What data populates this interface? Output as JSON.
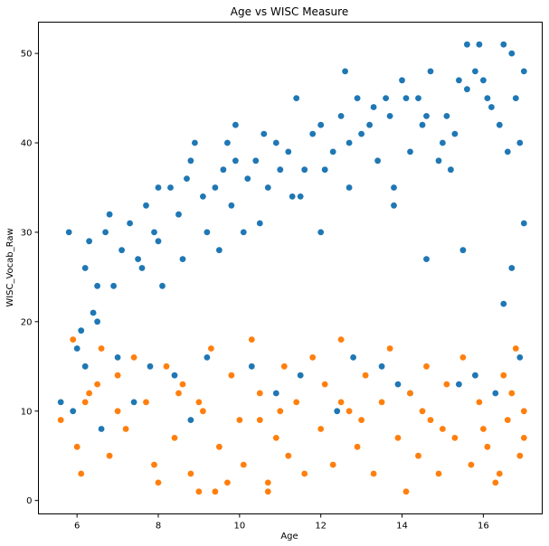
{
  "chart_data": {
    "type": "scatter",
    "title": "Age vs WISC Measure",
    "xlabel": "Age",
    "ylabel": "WISC_Vocab_Raw",
    "xlim": [
      5.05,
      17.45
    ],
    "ylim": [
      -1.5,
      53.5
    ],
    "xticks": [
      6,
      8,
      10,
      12,
      14,
      16
    ],
    "yticks": [
      0,
      10,
      20,
      30,
      40,
      50
    ],
    "grid": false,
    "series": [
      {
        "color": "#1f77b4",
        "points": [
          [
            5.8,
            30
          ],
          [
            5.9,
            10
          ],
          [
            6.1,
            19
          ],
          [
            6.2,
            26
          ],
          [
            6.3,
            29
          ],
          [
            6.5,
            20
          ],
          [
            6.5,
            24
          ],
          [
            6.7,
            30
          ],
          [
            6.8,
            32
          ],
          [
            7.1,
            28
          ],
          [
            7.3,
            31
          ],
          [
            7.5,
            27
          ],
          [
            7.7,
            33
          ],
          [
            7.9,
            30
          ],
          [
            8.0,
            29
          ],
          [
            8.0,
            35
          ],
          [
            8.1,
            24
          ],
          [
            8.3,
            35
          ],
          [
            8.5,
            32
          ],
          [
            8.7,
            36
          ],
          [
            8.8,
            38
          ],
          [
            8.9,
            40
          ],
          [
            9.1,
            34
          ],
          [
            9.2,
            30
          ],
          [
            9.4,
            35
          ],
          [
            9.6,
            37
          ],
          [
            9.7,
            40
          ],
          [
            9.8,
            33
          ],
          [
            9.9,
            42
          ],
          [
            9.9,
            38
          ],
          [
            10.1,
            30
          ],
          [
            10.2,
            36
          ],
          [
            10.4,
            38
          ],
          [
            10.6,
            41
          ],
          [
            10.7,
            35
          ],
          [
            10.9,
            40
          ],
          [
            11.0,
            37
          ],
          [
            11.2,
            39
          ],
          [
            11.4,
            45
          ],
          [
            11.5,
            34
          ],
          [
            11.6,
            37
          ],
          [
            11.8,
            41
          ],
          [
            12.0,
            42
          ],
          [
            12.1,
            37
          ],
          [
            12.3,
            39
          ],
          [
            12.5,
            43
          ],
          [
            12.6,
            48
          ],
          [
            12.7,
            40
          ],
          [
            12.9,
            45
          ],
          [
            13.0,
            41
          ],
          [
            13.2,
            42
          ],
          [
            13.3,
            44
          ],
          [
            13.4,
            38
          ],
          [
            13.6,
            45
          ],
          [
            13.7,
            43
          ],
          [
            13.8,
            35
          ],
          [
            14.0,
            47
          ],
          [
            14.1,
            45
          ],
          [
            14.2,
            39
          ],
          [
            14.4,
            45
          ],
          [
            14.5,
            42
          ],
          [
            14.6,
            43
          ],
          [
            14.7,
            48
          ],
          [
            14.9,
            38
          ],
          [
            15.0,
            40
          ],
          [
            15.1,
            43
          ],
          [
            15.2,
            37
          ],
          [
            15.3,
            41
          ],
          [
            15.4,
            47
          ],
          [
            15.6,
            46
          ],
          [
            15.6,
            51
          ],
          [
            15.8,
            48
          ],
          [
            15.9,
            51
          ],
          [
            16.0,
            47
          ],
          [
            16.1,
            45
          ],
          [
            16.2,
            44
          ],
          [
            16.4,
            42
          ],
          [
            16.5,
            51
          ],
          [
            16.6,
            39
          ],
          [
            16.7,
            50
          ],
          [
            16.8,
            45
          ],
          [
            16.9,
            40
          ],
          [
            17.0,
            48
          ],
          [
            17.0,
            31
          ],
          [
            16.7,
            26
          ],
          [
            16.5,
            22
          ],
          [
            15.5,
            28
          ],
          [
            14.6,
            27
          ],
          [
            13.8,
            33
          ],
          [
            12.7,
            35
          ],
          [
            12.0,
            30
          ],
          [
            11.3,
            34
          ],
          [
            10.5,
            31
          ],
          [
            9.5,
            28
          ],
          [
            8.6,
            27
          ],
          [
            7.6,
            26
          ],
          [
            6.9,
            24
          ],
          [
            6.4,
            21
          ],
          [
            6.0,
            17
          ],
          [
            5.6,
            11
          ],
          [
            6.2,
            15
          ],
          [
            7.0,
            16
          ],
          [
            7.8,
            15
          ],
          [
            8.4,
            14
          ],
          [
            9.2,
            16
          ],
          [
            10.3,
            15
          ],
          [
            11.5,
            14
          ],
          [
            12.8,
            16
          ],
          [
            13.5,
            15
          ],
          [
            14.2,
            12
          ],
          [
            15.4,
            13
          ],
          [
            16.3,
            12
          ],
          [
            16.9,
            16
          ],
          [
            6.6,
            8
          ],
          [
            7.4,
            11
          ],
          [
            8.8,
            9
          ],
          [
            10.9,
            12
          ],
          [
            12.4,
            10
          ],
          [
            13.9,
            13
          ],
          [
            15.8,
            14
          ]
        ]
      },
      {
        "color": "#ff7f0e",
        "points": [
          [
            5.6,
            9
          ],
          [
            5.9,
            18
          ],
          [
            6.0,
            6
          ],
          [
            6.1,
            3
          ],
          [
            6.3,
            12
          ],
          [
            6.6,
            17
          ],
          [
            6.8,
            5
          ],
          [
            7.0,
            14
          ],
          [
            7.2,
            8
          ],
          [
            7.4,
            16
          ],
          [
            7.7,
            11
          ],
          [
            7.9,
            4
          ],
          [
            8.0,
            2
          ],
          [
            8.2,
            15
          ],
          [
            8.4,
            7
          ],
          [
            8.6,
            13
          ],
          [
            8.8,
            3
          ],
          [
            9.0,
            1
          ],
          [
            9.1,
            10
          ],
          [
            9.3,
            17
          ],
          [
            9.4,
            1
          ],
          [
            9.5,
            6
          ],
          [
            9.7,
            2
          ],
          [
            9.8,
            14
          ],
          [
            10.0,
            9
          ],
          [
            10.1,
            4
          ],
          [
            10.3,
            18
          ],
          [
            10.5,
            12
          ],
          [
            10.7,
            1
          ],
          [
            10.7,
            2
          ],
          [
            10.9,
            7
          ],
          [
            11.1,
            15
          ],
          [
            11.2,
            5
          ],
          [
            11.4,
            11
          ],
          [
            11.6,
            3
          ],
          [
            11.8,
            16
          ],
          [
            12.0,
            8
          ],
          [
            12.1,
            13
          ],
          [
            12.3,
            4
          ],
          [
            12.5,
            18
          ],
          [
            12.7,
            10
          ],
          [
            12.9,
            6
          ],
          [
            13.1,
            14
          ],
          [
            13.3,
            3
          ],
          [
            13.5,
            11
          ],
          [
            13.7,
            17
          ],
          [
            13.9,
            7
          ],
          [
            14.1,
            1
          ],
          [
            14.2,
            12
          ],
          [
            14.4,
            5
          ],
          [
            14.6,
            15
          ],
          [
            14.7,
            9
          ],
          [
            14.9,
            3
          ],
          [
            15.1,
            13
          ],
          [
            15.3,
            7
          ],
          [
            15.5,
            16
          ],
          [
            15.7,
            4
          ],
          [
            15.9,
            11
          ],
          [
            16.1,
            6
          ],
          [
            16.3,
            2
          ],
          [
            16.4,
            3
          ],
          [
            16.5,
            14
          ],
          [
            16.6,
            9
          ],
          [
            16.8,
            17
          ],
          [
            16.9,
            5
          ],
          [
            17.0,
            10
          ],
          [
            17.0,
            7
          ],
          [
            16.7,
            12
          ],
          [
            15.0,
            8
          ],
          [
            13.0,
            9
          ],
          [
            11.0,
            10
          ],
          [
            9.0,
            11
          ],
          [
            7.0,
            10
          ],
          [
            6.5,
            13
          ],
          [
            8.5,
            12
          ],
          [
            10.5,
            9
          ],
          [
            12.5,
            11
          ],
          [
            14.5,
            10
          ],
          [
            16.0,
            8
          ],
          [
            6.2,
            11
          ]
        ]
      }
    ]
  }
}
